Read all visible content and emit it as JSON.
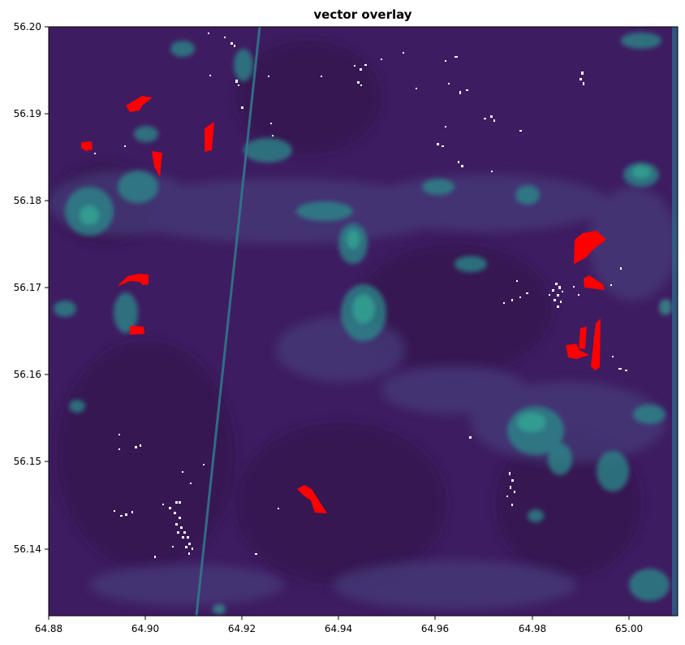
{
  "figure": {
    "title": "vector overlay"
  },
  "map": {
    "raster_colormap": "viridis",
    "vector_fill_color": "#ff0000",
    "speckle_color": "#ffffff",
    "background_color": "#3e1c61",
    "x_ticks": [
      "64.88",
      "64.90",
      "64.92",
      "64.94",
      "64.96",
      "64.98",
      "65.00"
    ],
    "y_ticks": [
      "56.20",
      "56.19",
      "56.18",
      "56.17",
      "56.16",
      "56.15",
      "56.14"
    ]
  }
}
